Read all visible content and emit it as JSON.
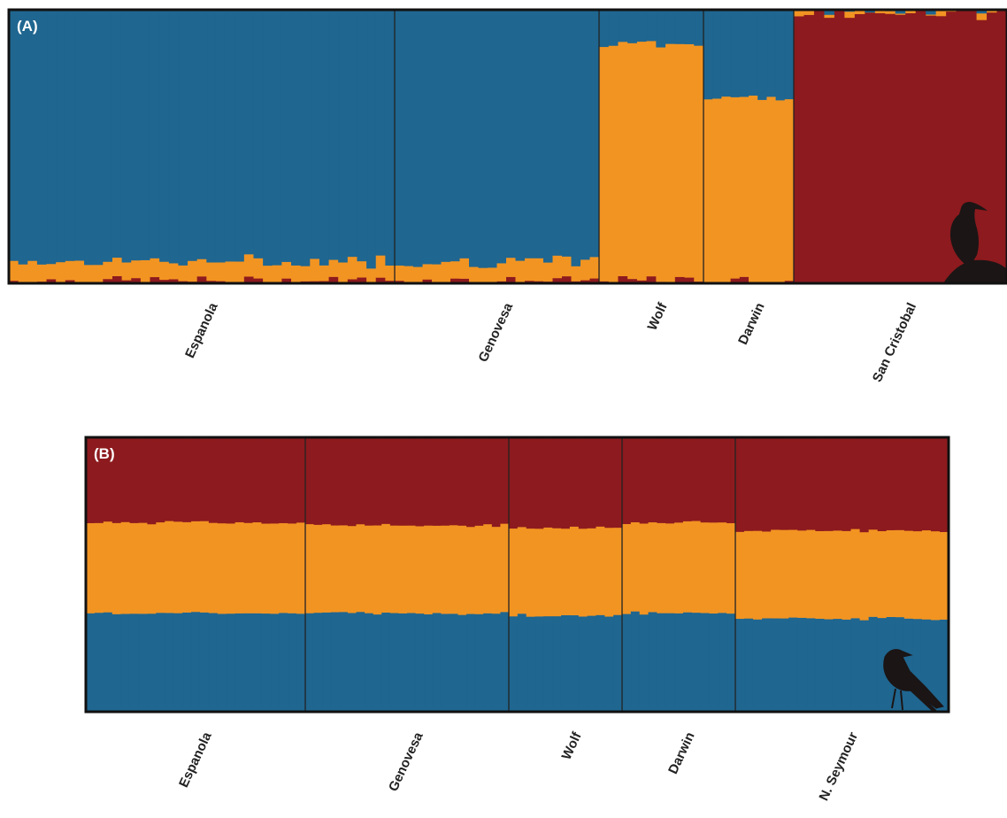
{
  "figure": {
    "colors": {
      "blue": "#1f6690",
      "orange": "#f29422",
      "red": "#8d1a1e",
      "frame": "#111111",
      "silhouette": "#1b1515"
    }
  },
  "chart_data": [
    {
      "type": "bar",
      "panel_label": "(A)",
      "stacked": true,
      "normalized": true,
      "ylim": [
        0,
        1
      ],
      "stack_order_bottom_to_top": [
        "red",
        "orange",
        "blue"
      ],
      "series_colors": [
        "#8d1a1e",
        "#f29422",
        "#1f6690"
      ],
      "populations": [
        {
          "name": "Espanola",
          "n": 41,
          "red": 0.01,
          "orange": 0.07,
          "blue": 0.92
        },
        {
          "name": "Genovesa",
          "n": 22,
          "red": 0.01,
          "orange": 0.07,
          "blue": 0.92
        },
        {
          "name": "Wolf",
          "n": 11,
          "red": 0.01,
          "orange": 0.86,
          "blue": 0.13
        },
        {
          "name": "Darwin",
          "n": 10,
          "red": 0.01,
          "orange": 0.67,
          "blue": 0.32
        },
        {
          "name": "San Cristobal",
          "n": 21,
          "red": 0.99,
          "orange": 0.008,
          "blue": 0.002
        }
      ],
      "silhouette": "booby-silhouette-icon"
    },
    {
      "type": "bar",
      "panel_label": "(B)",
      "stacked": true,
      "normalized": true,
      "ylim": [
        0,
        1
      ],
      "stack_order_bottom_to_top": [
        "blue",
        "orange",
        "red"
      ],
      "series_colors": [
        "#1f6690",
        "#f29422",
        "#8d1a1e"
      ],
      "populations": [
        {
          "name": "Espanola",
          "n": 25,
          "blue": 0.36,
          "orange": 0.33,
          "red": 0.31
        },
        {
          "name": "Genovesa",
          "n": 24,
          "blue": 0.36,
          "orange": 0.32,
          "red": 0.32
        },
        {
          "name": "Wolf",
          "n": 13,
          "blue": 0.35,
          "orange": 0.32,
          "red": 0.33
        },
        {
          "name": "Darwin",
          "n": 13,
          "blue": 0.36,
          "orange": 0.33,
          "red": 0.31
        },
        {
          "name": "N. Seymour",
          "n": 24,
          "blue": 0.34,
          "orange": 0.32,
          "red": 0.34
        }
      ],
      "silhouette": "frigatebird-silhouette-icon"
    }
  ]
}
